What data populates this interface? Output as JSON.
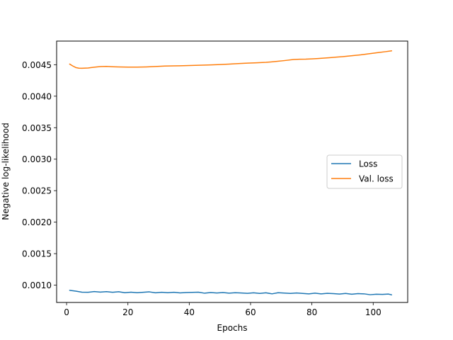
{
  "chart_data": {
    "type": "line",
    "title": "",
    "xlabel": "Epochs",
    "ylabel": "Negative log-likelihood",
    "xlim": [
      -3.25,
      111.25
    ],
    "ylim": [
      0.000725,
      0.004875
    ],
    "xticks": [
      0,
      20,
      40,
      60,
      80,
      100
    ],
    "xtick_labels": [
      "0",
      "20",
      "40",
      "60",
      "80",
      "100"
    ],
    "yticks": [
      0.001,
      0.0015,
      0.002,
      0.0025,
      0.003,
      0.0035,
      0.004,
      0.0045
    ],
    "ytick_labels": [
      "0.0010",
      "0.0015",
      "0.0020",
      "0.0025",
      "0.0030",
      "0.0035",
      "0.0040",
      "0.0045"
    ],
    "grid": false,
    "legend": "center-right",
    "series": [
      {
        "name": "Loss",
        "color": "#1f77b4",
        "x": [
          1,
          3,
          5,
          7,
          9,
          11,
          13,
          15,
          17,
          19,
          21,
          23,
          25,
          27,
          29,
          31,
          33,
          35,
          37,
          39,
          41,
          43,
          45,
          47,
          49,
          51,
          53,
          55,
          57,
          59,
          61,
          63,
          65,
          67,
          69,
          71,
          73,
          75,
          77,
          79,
          81,
          83,
          85,
          87,
          89,
          91,
          93,
          95,
          97,
          99,
          101,
          103,
          105,
          106
        ],
        "values": [
          0.000918,
          0.000905,
          0.000888,
          0.000886,
          0.000898,
          0.000889,
          0.000897,
          0.000887,
          0.000895,
          0.00088,
          0.000888,
          0.00088,
          0.000886,
          0.000893,
          0.000878,
          0.000886,
          0.00088,
          0.000886,
          0.000877,
          0.000883,
          0.000885,
          0.000888,
          0.000872,
          0.000883,
          0.000875,
          0.000882,
          0.000872,
          0.00088,
          0.000876,
          0.00087,
          0.000878,
          0.000869,
          0.000878,
          0.000862,
          0.00088,
          0.000874,
          0.000868,
          0.000876,
          0.000869,
          0.000862,
          0.000873,
          0.000862,
          0.00087,
          0.000866,
          0.000858,
          0.000868,
          0.000856,
          0.000865,
          0.000862,
          0.000848,
          0.000856,
          0.000853,
          0.000858,
          0.000846
        ]
      },
      {
        "name": "Val. loss",
        "color": "#ff7f0e",
        "x": [
          1,
          2,
          3,
          4,
          5,
          7,
          9,
          11,
          13,
          15,
          17,
          20,
          23,
          26,
          29,
          32,
          35,
          38,
          41,
          44,
          47,
          50,
          53,
          56,
          59,
          62,
          65,
          68,
          71,
          74,
          76,
          78,
          80,
          82,
          84,
          86,
          88,
          90,
          92,
          94,
          96,
          98,
          100,
          102,
          104,
          106
        ],
        "values": [
          0.00451,
          0.00448,
          0.004455,
          0.004445,
          0.004443,
          0.004448,
          0.00446,
          0.00447,
          0.004473,
          0.004468,
          0.004465,
          0.004462,
          0.004461,
          0.004465,
          0.004472,
          0.004478,
          0.004482,
          0.004484,
          0.004488,
          0.004493,
          0.004497,
          0.004502,
          0.00451,
          0.004518,
          0.004525,
          0.00453,
          0.004537,
          0.00455,
          0.004565,
          0.004582,
          0.004587,
          0.004588,
          0.004592,
          0.004598,
          0.004605,
          0.004612,
          0.00462,
          0.004628,
          0.004637,
          0.004647,
          0.004657,
          0.00467,
          0.004683,
          0.004695,
          0.004707,
          0.00472
        ]
      }
    ]
  }
}
